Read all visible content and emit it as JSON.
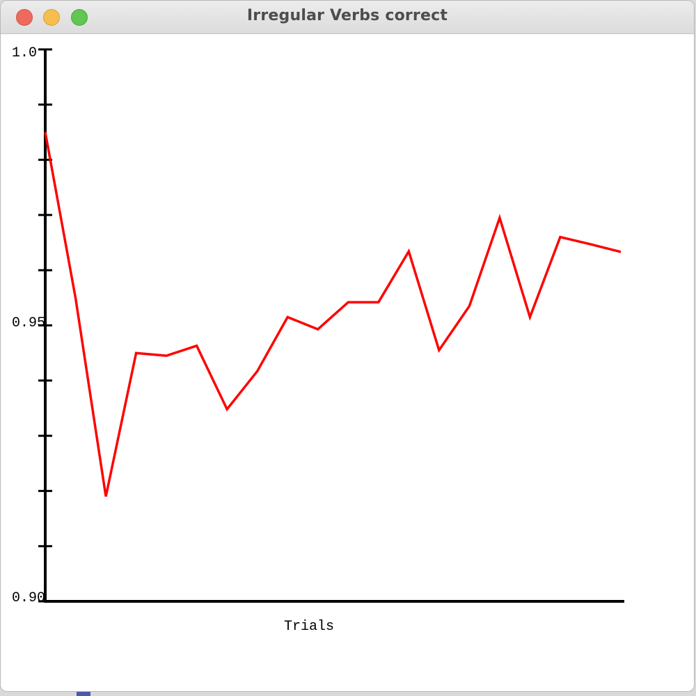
{
  "window": {
    "title": "Irregular Verbs correct"
  },
  "chart_data": {
    "type": "line",
    "title": "Irregular Verbs correct",
    "xlabel": "Trials",
    "ylabel": "",
    "ylim": [
      0.9,
      1.0
    ],
    "y_tick_labels": [
      "1.0",
      "0.95",
      "0.90"
    ],
    "y_tick_step": 0.01,
    "grid": false,
    "x": [
      1,
      2,
      3,
      4,
      5,
      6,
      7,
      8,
      9,
      10,
      11,
      12,
      13,
      14,
      15,
      16,
      17,
      18,
      19,
      20
    ],
    "series": [
      {
        "color": "#ff0000",
        "values": [
          0.985,
          0.955,
          0.919,
          0.945,
          0.9445,
          0.9463,
          0.9348,
          0.9417,
          0.9515,
          0.9493,
          0.9542,
          0.9542,
          0.9634,
          0.9455,
          0.9535,
          0.9695,
          0.9515,
          0.966,
          0.9647,
          0.9633
        ]
      }
    ]
  },
  "colors": {
    "line": "#ff0000",
    "axis": "#000000"
  }
}
